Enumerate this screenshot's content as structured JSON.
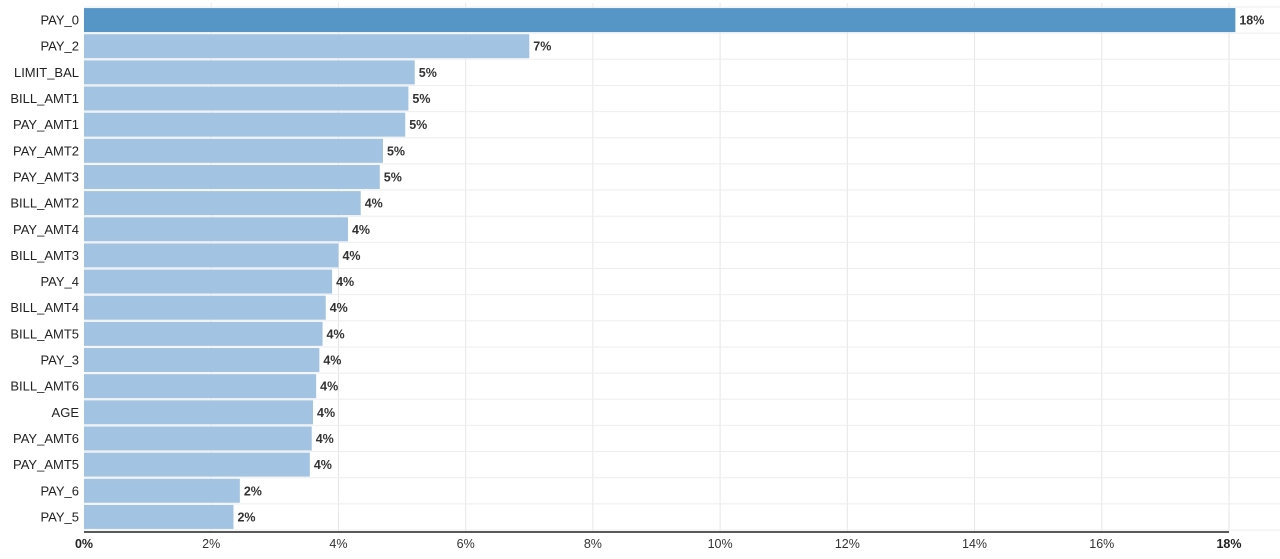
{
  "chart_data": {
    "type": "bar",
    "orientation": "horizontal",
    "categories": [
      "PAY_0",
      "PAY_2",
      "LIMIT_BAL",
      "BILL_AMT1",
      "PAY_AMT1",
      "PAY_AMT2",
      "PAY_AMT3",
      "BILL_AMT2",
      "PAY_AMT4",
      "BILL_AMT3",
      "PAY_4",
      "BILL_AMT4",
      "BILL_AMT5",
      "PAY_3",
      "BILL_AMT6",
      "AGE",
      "PAY_AMT6",
      "PAY_AMT5",
      "PAY_6",
      "PAY_5"
    ],
    "values": [
      18.1,
      7.0,
      5.2,
      5.1,
      5.05,
      4.7,
      4.65,
      4.35,
      4.15,
      4.0,
      3.9,
      3.8,
      3.75,
      3.7,
      3.65,
      3.6,
      3.58,
      3.55,
      2.45,
      2.35
    ],
    "data_labels": [
      "18%",
      "7%",
      "5%",
      "5%",
      "5%",
      "5%",
      "5%",
      "4%",
      "4%",
      "4%",
      "4%",
      "4%",
      "4%",
      "4%",
      "4%",
      "4%",
      "4%",
      "4%",
      "2%",
      "2%"
    ],
    "xlim": [
      0,
      18
    ],
    "x_ticks": [
      0,
      2,
      4,
      6,
      8,
      10,
      12,
      14,
      16,
      18
    ],
    "x_tick_labels": [
      "0%",
      "2%",
      "4%",
      "6%",
      "8%",
      "10%",
      "12%",
      "14%",
      "16%",
      "18%"
    ],
    "title": "",
    "xlabel": "",
    "ylabel": "",
    "grid": true,
    "legend": "none",
    "colors": {
      "highlight": "#5596c6",
      "bar": "#a2c4e2",
      "grid": "#e6e6e6",
      "axis": "#222222"
    }
  }
}
